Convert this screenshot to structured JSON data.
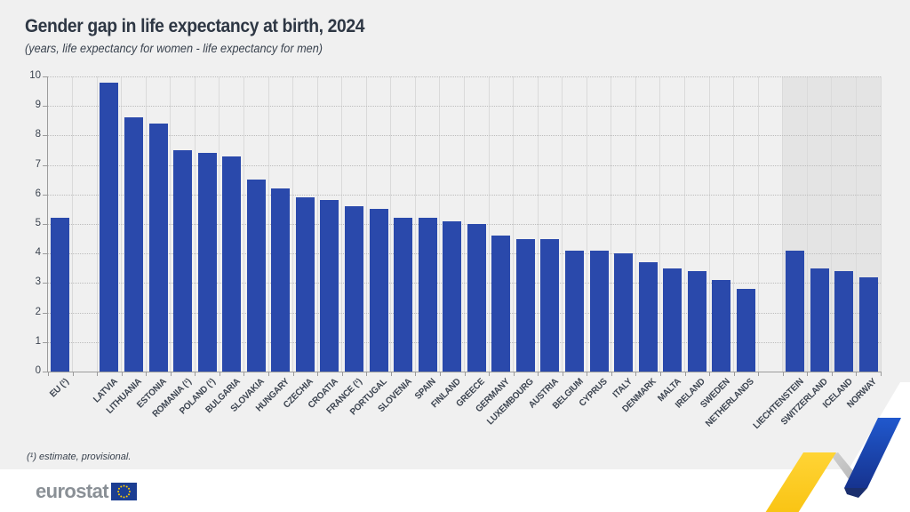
{
  "header": {
    "title": "Gender gap in life expectancy at birth, 2024",
    "subtitle": "(years, life expectancy for women - life expectancy for men)"
  },
  "footnote": "(¹) estimate, provisional.",
  "logo": {
    "text": "eurostat",
    "flag_blue": "#1c3e92",
    "flag_star_color": "#ffcc00"
  },
  "chart_data": {
    "type": "bar",
    "title": "Gender gap in life expectancy at birth, 2024",
    "subtitle": "(years, life expectancy for women - life expectancy for men)",
    "unit": "years",
    "ylim": [
      0,
      10
    ],
    "yticks": [
      0,
      1,
      2,
      3,
      4,
      5,
      6,
      7,
      8,
      9,
      10
    ],
    "grid": "horizontal dotted lines at every integer, light vertical column separators",
    "legend": "none",
    "bar_color": "#2a49ab",
    "efta_shade_color": "#e4e4e4",
    "categories": [
      "EU (¹)",
      "LATVIA",
      "LITHUANIA",
      "ESTONIA",
      "ROMANIA (¹)",
      "POLAND (¹)",
      "BULGARIA",
      "SLOVAKIA",
      "HUNGARY",
      "CZECHIA",
      "CROATIA",
      "FRANCE (¹)",
      "PORTUGAL",
      "SLOVENIA",
      "SPAIN",
      "FINLAND",
      "GREECE",
      "GERMANY",
      "LUXEMBOURG",
      "AUSTRIA",
      "BELGIUM",
      "CYPRUS",
      "ITALY",
      "DENMARK",
      "MALTA",
      "IRELAND",
      "SWEDEN",
      "NETHERLANDS",
      "LIECHTENSTEIN",
      "SWITZERLAND",
      "ICELAND",
      "NORWAY"
    ],
    "values": [
      5.2,
      9.8,
      8.6,
      8.4,
      7.5,
      7.4,
      7.3,
      6.5,
      6.2,
      5.9,
      5.8,
      5.6,
      5.5,
      5.2,
      5.2,
      5.1,
      5.0,
      4.6,
      4.5,
      4.5,
      4.1,
      4.1,
      4.0,
      3.7,
      3.5,
      3.4,
      3.1,
      2.8,
      4.1,
      3.5,
      3.4,
      3.2
    ],
    "groups": [
      "eu-aggregate",
      "member",
      "member",
      "member",
      "member",
      "member",
      "member",
      "member",
      "member",
      "member",
      "member",
      "member",
      "member",
      "member",
      "member",
      "member",
      "member",
      "member",
      "member",
      "member",
      "member",
      "member",
      "member",
      "member",
      "member",
      "member",
      "member",
      "member",
      "efta",
      "efta",
      "efta",
      "efta"
    ],
    "notes": "EFTA countries (Liechtenstein, Switzerland, Iceland, Norway) drawn on shaded background; gap between EU aggregate and member states, and between member states and EFTA"
  },
  "decorations": {
    "ribbon": {
      "yellow": "#f9c414",
      "yellow_light": "#ffd435",
      "grey_fold": "#cfcfcf",
      "grey_fold_dark": "#b5b5b5",
      "blue": "#2058cd",
      "blue_dark": "#16338f",
      "navy_tip": "#1b2f6e",
      "white": "#ffffff"
    }
  }
}
